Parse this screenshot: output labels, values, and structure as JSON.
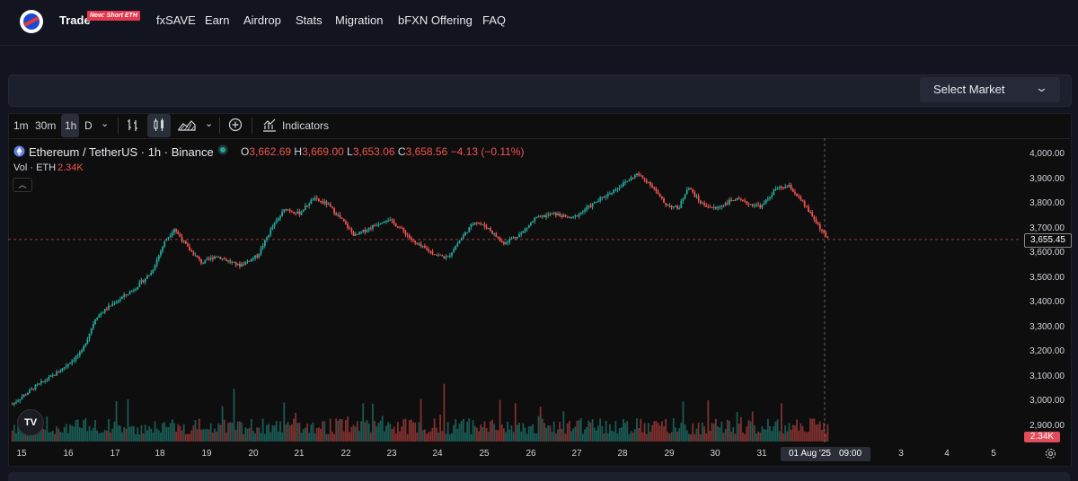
{
  "nav": {
    "items": [
      {
        "label": "Trade",
        "active": true
      },
      {
        "label": "fxSAVE"
      },
      {
        "label": "Earn"
      },
      {
        "label": "Airdrop"
      },
      {
        "label": "Stats"
      },
      {
        "label": "Migration"
      },
      {
        "label": "bFXN Offering"
      },
      {
        "label": "FAQ"
      }
    ],
    "badge": "New: Short ETH"
  },
  "market_select": {
    "label": "Select Market"
  },
  "toolbar": {
    "intervals": [
      "1m",
      "30m",
      "1h",
      "D"
    ],
    "active_interval": "1h",
    "indicators_label": "Indicators"
  },
  "legend": {
    "symbol": "Ethereum / TetherUS · 1h · Binance",
    "o_label": "O",
    "o": "3,662.69",
    "h_label": "H",
    "h": "3,669.00",
    "l_label": "L",
    "l": "3,653.06",
    "c_label": "C",
    "c": "3,658.56",
    "change": "−4.13 (−0.11%)",
    "vol_label": "Vol · ETH",
    "vol": "2.34K"
  },
  "price_tag": "3,655.45",
  "vol_tag": "2.34K",
  "date_tag": {
    "date": "01 Aug '25",
    "time": "09:00"
  },
  "tv_logo": "TV",
  "colors": {
    "up": "#26a69a",
    "down": "#ef5350",
    "background": "#0e0e0e"
  },
  "chart_data": {
    "type": "candlestick",
    "title": "Ethereum / TetherUS · 1h · Binance",
    "ylim": [
      2860,
      4060
    ],
    "y_ticks": [
      "4,000.00",
      "3,900.00",
      "3,800.00",
      "3,700.00",
      "3,600.00",
      "3,500.00",
      "3,400.00",
      "3,300.00",
      "3,200.00",
      "3,100.00",
      "3,000.00",
      "2,900.00"
    ],
    "x_ticks": [
      "15",
      "16",
      "17",
      "18",
      "19",
      "20",
      "21",
      "22",
      "23",
      "24",
      "25",
      "26",
      "27",
      "28",
      "29",
      "30",
      "31",
      "3",
      "4",
      "5"
    ],
    "close_path": [
      {
        "day": 14.8,
        "price": 2990
      },
      {
        "day": 15.3,
        "price": 3060
      },
      {
        "day": 15.8,
        "price": 3120
      },
      {
        "day": 16.3,
        "price": 3200
      },
      {
        "day": 16.6,
        "price": 3340
      },
      {
        "day": 17.0,
        "price": 3400
      },
      {
        "day": 17.4,
        "price": 3450
      },
      {
        "day": 17.8,
        "price": 3520
      },
      {
        "day": 18.1,
        "price": 3650
      },
      {
        "day": 18.3,
        "price": 3700
      },
      {
        "day": 18.6,
        "price": 3620
      },
      {
        "day": 18.9,
        "price": 3560
      },
      {
        "day": 19.2,
        "price": 3590
      },
      {
        "day": 19.7,
        "price": 3550
      },
      {
        "day": 20.1,
        "price": 3590
      },
      {
        "day": 20.4,
        "price": 3700
      },
      {
        "day": 20.7,
        "price": 3780
      },
      {
        "day": 21.0,
        "price": 3760
      },
      {
        "day": 21.3,
        "price": 3820
      },
      {
        "day": 21.6,
        "price": 3800
      },
      {
        "day": 21.9,
        "price": 3740
      },
      {
        "day": 22.2,
        "price": 3670
      },
      {
        "day": 22.5,
        "price": 3700
      },
      {
        "day": 22.9,
        "price": 3740
      },
      {
        "day": 23.2,
        "price": 3700
      },
      {
        "day": 23.5,
        "price": 3640
      },
      {
        "day": 23.9,
        "price": 3600
      },
      {
        "day": 24.2,
        "price": 3580
      },
      {
        "day": 24.5,
        "price": 3660
      },
      {
        "day": 24.8,
        "price": 3730
      },
      {
        "day": 25.1,
        "price": 3700
      },
      {
        "day": 25.4,
        "price": 3640
      },
      {
        "day": 25.8,
        "price": 3680
      },
      {
        "day": 26.1,
        "price": 3740
      },
      {
        "day": 26.5,
        "price": 3760
      },
      {
        "day": 26.9,
        "price": 3740
      },
      {
        "day": 27.2,
        "price": 3780
      },
      {
        "day": 27.6,
        "price": 3830
      },
      {
        "day": 28.0,
        "price": 3880
      },
      {
        "day": 28.3,
        "price": 3920
      },
      {
        "day": 28.6,
        "price": 3880
      },
      {
        "day": 28.9,
        "price": 3800
      },
      {
        "day": 29.2,
        "price": 3780
      },
      {
        "day": 29.4,
        "price": 3870
      },
      {
        "day": 29.7,
        "price": 3800
      },
      {
        "day": 30.0,
        "price": 3780
      },
      {
        "day": 30.4,
        "price": 3820
      },
      {
        "day": 30.7,
        "price": 3800
      },
      {
        "day": 31.0,
        "price": 3790
      },
      {
        "day": 31.3,
        "price": 3860
      },
      {
        "day": 31.6,
        "price": 3870
      },
      {
        "day": 31.9,
        "price": 3800
      },
      {
        "day": 32.2,
        "price": 3720
      },
      {
        "day": 32.4,
        "price": 3660
      }
    ],
    "last_price": 3655.45
  }
}
